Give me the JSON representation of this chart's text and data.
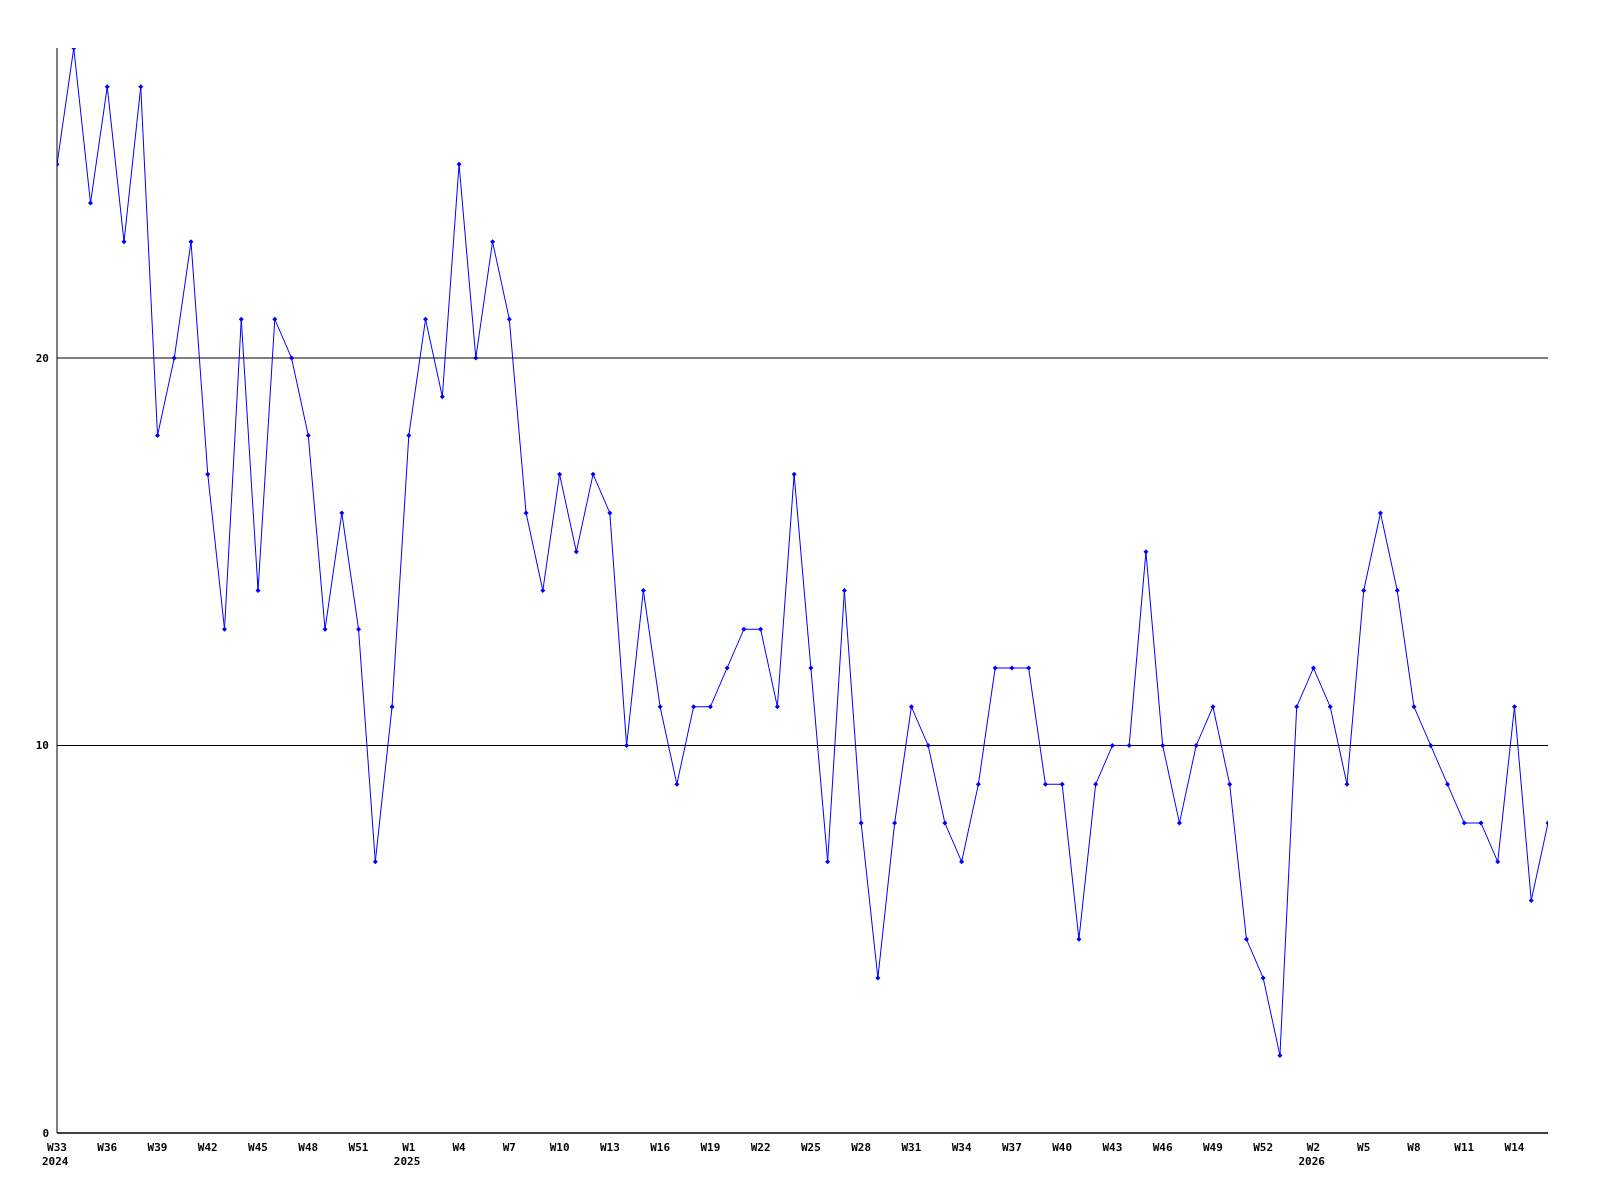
{
  "chart_data": {
    "type": "line",
    "categories": [
      "W33 2024",
      null,
      null,
      "W36",
      null,
      null,
      "W39",
      null,
      null,
      "W42",
      null,
      null,
      "W45",
      null,
      null,
      "W48",
      null,
      null,
      "W51",
      null,
      null,
      "W1 2025",
      null,
      null,
      "W4",
      null,
      null,
      "W7",
      null,
      null,
      "W10",
      null,
      null,
      "W13",
      null,
      null,
      "W16",
      null,
      null,
      "W19",
      null,
      null,
      "W22",
      null,
      null,
      "W25",
      null,
      null,
      "W28",
      null,
      null,
      "W31",
      null,
      null,
      "W34",
      null,
      null,
      "W37",
      null,
      null,
      "W40",
      null,
      null,
      "W43",
      null,
      null,
      "W46",
      null,
      null,
      "W49",
      null,
      null,
      "W52",
      null,
      null,
      "W2 2026",
      null,
      null,
      "W5",
      null,
      null,
      "W8",
      null,
      null,
      "W11",
      null,
      null,
      "W14",
      null,
      null
    ],
    "series": [
      {
        "color": "#0000ff",
        "values": [
          25,
          28,
          24,
          27,
          23,
          27,
          18,
          20,
          23,
          17,
          13,
          21,
          14,
          21,
          20,
          18,
          13,
          16,
          13,
          7,
          11,
          18,
          21,
          19,
          25,
          20,
          23,
          21,
          16,
          14,
          17,
          15,
          17,
          16,
          10,
          14,
          11,
          9,
          11,
          11,
          12,
          13,
          13,
          11,
          17,
          12,
          7,
          14,
          8,
          4,
          8,
          11,
          10,
          8,
          7,
          9,
          12,
          12,
          12,
          9,
          9,
          5,
          9,
          10,
          10,
          15,
          10,
          8,
          10,
          11,
          9,
          5,
          4,
          2,
          11,
          12,
          11,
          9,
          14,
          16,
          14,
          11,
          10,
          9,
          8,
          8,
          7,
          11,
          6,
          8
        ]
      }
    ],
    "ylim": [
      0,
      28
    ],
    "yticks": [
      0,
      10,
      20
    ],
    "grid": "y",
    "legend": false,
    "marker": "diamond",
    "line_style": "solid"
  }
}
